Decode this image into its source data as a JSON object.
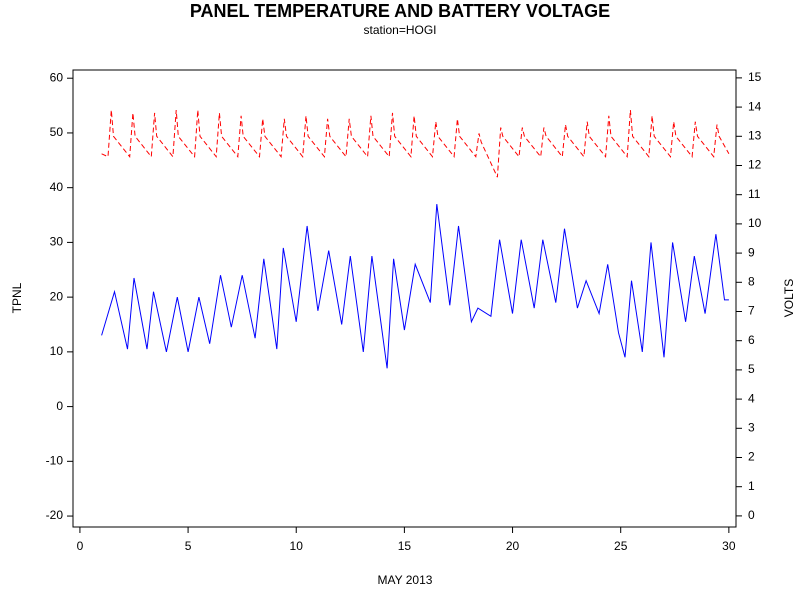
{
  "chart_data": {
    "type": "line",
    "title": "PANEL TEMPERATURE AND BATTERY VOLTAGE",
    "subtitle": "station=HOGI",
    "xlabel": "MAY 2013",
    "ylabel": "TPNL",
    "y2label": "VOLTS",
    "xlim": [
      -0.32,
      30.33
    ],
    "xticks": [
      0,
      5,
      10,
      15,
      20,
      25,
      30
    ],
    "ylim": [
      -22,
      61.5
    ],
    "yticks": [
      -20,
      -10,
      0,
      10,
      20,
      30,
      40,
      50,
      60
    ],
    "y2lim": [
      -0.38,
      15.27
    ],
    "y2ticks": [
      0,
      1,
      2,
      3,
      4,
      5,
      6,
      7,
      8,
      9,
      10,
      11,
      12,
      13,
      14,
      15
    ],
    "series": [
      {
        "color": "#0000ff",
        "dash": false,
        "axis": "y",
        "x": [
          1.0,
          1.6,
          2.2,
          2.5,
          3.1,
          3.4,
          4.0,
          4.5,
          5.0,
          5.5,
          6.0,
          6.5,
          7.0,
          7.5,
          8.1,
          8.5,
          9.1,
          9.4,
          10.0,
          10.5,
          11.0,
          11.5,
          12.1,
          12.5,
          13.1,
          13.5,
          14.2,
          14.5,
          15.0,
          15.5,
          16.2,
          16.5,
          17.1,
          17.5,
          18.1,
          18.4,
          19.0,
          19.4,
          20.0,
          20.4,
          21.0,
          21.4,
          22.0,
          22.4,
          23.0,
          23.4,
          24.0,
          24.4,
          24.9,
          25.2,
          25.5,
          26.0,
          26.4,
          27.0,
          27.4,
          28.0,
          28.4,
          28.9,
          29.4,
          29.8,
          30.0
        ],
        "values": [
          13,
          21,
          10.5,
          23.5,
          10.5,
          21,
          10,
          20,
          10,
          20,
          11.5,
          24,
          14.5,
          24,
          12.5,
          27,
          10.5,
          29,
          15.5,
          33,
          17.5,
          28.5,
          15,
          27.5,
          10,
          27.5,
          7,
          27,
          14,
          26,
          19,
          37,
          18.5,
          33,
          15.5,
          18,
          16.5,
          30.5,
          17,
          30.5,
          18,
          30.5,
          19,
          32.5,
          18,
          23,
          17,
          26,
          13.5,
          9,
          23,
          10,
          30,
          9,
          30,
          15.5,
          27.5,
          17,
          31.5,
          19.5,
          19.5
        ]
      },
      {
        "color": "#ff0000",
        "dash": true,
        "axis": "y2",
        "x": [
          1.0,
          1.3,
          1.45,
          1.55,
          2.3,
          2.45,
          2.55,
          3.3,
          3.45,
          3.55,
          4.3,
          4.45,
          4.55,
          5.3,
          5.45,
          5.55,
          6.3,
          6.45,
          6.55,
          7.3,
          7.45,
          7.55,
          8.3,
          8.45,
          8.55,
          9.3,
          9.45,
          9.55,
          10.3,
          10.45,
          10.55,
          11.3,
          11.45,
          11.55,
          12.3,
          12.45,
          12.55,
          13.3,
          13.45,
          13.55,
          14.3,
          14.45,
          14.55,
          15.3,
          15.45,
          15.55,
          16.3,
          16.45,
          16.55,
          17.3,
          17.45,
          17.55,
          18.3,
          18.45,
          18.55,
          19.3,
          19.45,
          19.55,
          20.3,
          20.45,
          20.55,
          21.3,
          21.45,
          21.55,
          22.3,
          22.45,
          22.55,
          23.3,
          23.45,
          23.55,
          24.3,
          24.45,
          24.55,
          25.3,
          25.45,
          25.55,
          26.3,
          26.45,
          26.55,
          27.3,
          27.45,
          27.55,
          28.3,
          28.45,
          28.55,
          29.3,
          29.45,
          29.55,
          30.0
        ],
        "values": [
          12.4,
          12.3,
          13.9,
          13.0,
          12.3,
          13.8,
          13.0,
          12.3,
          13.8,
          13.0,
          12.3,
          13.9,
          13.0,
          12.3,
          13.9,
          13.0,
          12.3,
          13.8,
          13.0,
          12.3,
          13.7,
          13.0,
          12.3,
          13.6,
          13.0,
          12.3,
          13.6,
          13.0,
          12.3,
          13.7,
          13.0,
          12.3,
          13.6,
          13.0,
          12.3,
          13.6,
          13.0,
          12.3,
          13.7,
          13.0,
          12.3,
          13.8,
          13.0,
          12.3,
          13.7,
          13.0,
          12.3,
          13.5,
          13.0,
          12.3,
          13.6,
          13.0,
          12.3,
          13.1,
          12.8,
          11.6,
          13.3,
          13.0,
          12.3,
          13.3,
          13.0,
          12.3,
          13.3,
          13.0,
          12.3,
          13.4,
          13.0,
          12.3,
          13.5,
          13.0,
          12.3,
          13.7,
          13.0,
          12.3,
          13.9,
          13.0,
          12.3,
          13.7,
          13.0,
          12.3,
          13.5,
          13.0,
          12.3,
          13.5,
          13.0,
          12.3,
          13.4,
          13.0,
          12.4
        ]
      }
    ]
  }
}
